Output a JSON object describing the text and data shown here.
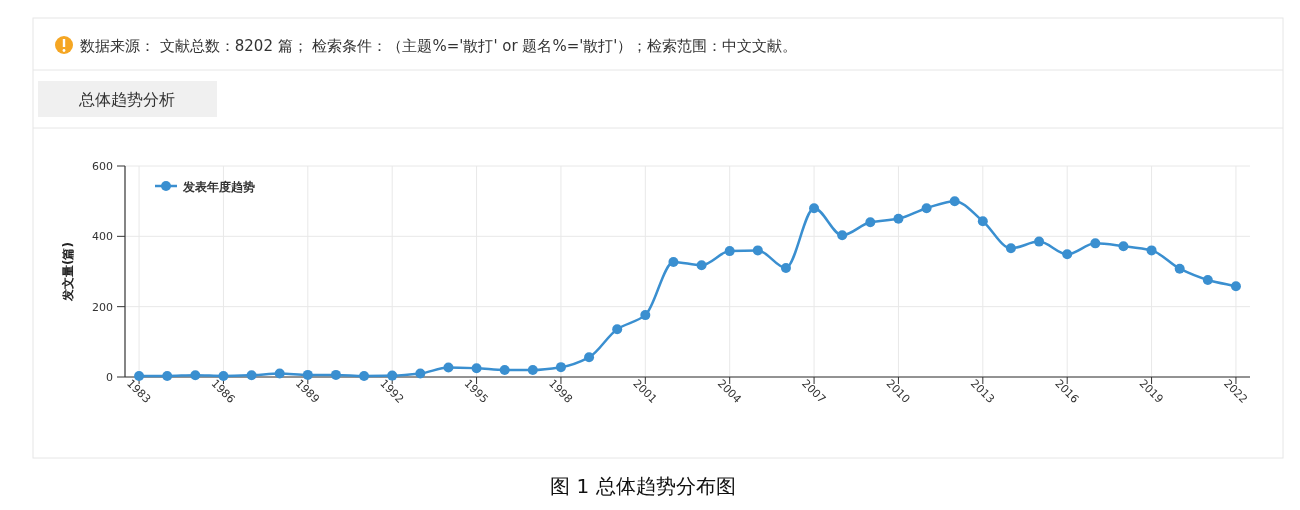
{
  "chart_data": {
    "type": "line",
    "title": "总体趋势分析",
    "annotations": [
      "数据来源：  文献总数：8202 篇；  检索条件：（主题%='散打' or 题名%='散打'）；检索范围：中文文献。",
      "图 1  总体趋势分布图"
    ],
    "ylabel": "发文量(篇)",
    "x": [
      1983,
      1984,
      1985,
      1986,
      1987,
      1988,
      1989,
      1990,
      1991,
      1992,
      1993,
      1994,
      1995,
      1996,
      1997,
      1998,
      1999,
      2000,
      2001,
      2002,
      2003,
      2004,
      2005,
      2006,
      2007,
      2008,
      2009,
      2010,
      2011,
      2012,
      2013,
      2014,
      2015,
      2016,
      2017,
      2018,
      2019,
      2020,
      2021,
      2022
    ],
    "series": [
      {
        "name": "发表年度趋势",
        "color": "#3a8fd0",
        "values": [
          3,
          3,
          5,
          3,
          5,
          10,
          6,
          6,
          3,
          4,
          10,
          27,
          25,
          20,
          20,
          28,
          56,
          136,
          176,
          327,
          318,
          358,
          360,
          310,
          480,
          403,
          440,
          450,
          480,
          500,
          443,
          366,
          385,
          349,
          380,
          372,
          360,
          308,
          276,
          258
        ]
      }
    ],
    "xlim": [
      1982.5,
      2022.5
    ],
    "xticks": [
      1983,
      1986,
      1989,
      1992,
      1995,
      1998,
      2001,
      2004,
      2007,
      2010,
      2013,
      2016,
      2019,
      2022
    ],
    "ylim": [
      0,
      600
    ],
    "yticks": [
      0,
      200,
      400,
      600
    ],
    "grid": true,
    "legend": "top left",
    "marker": "circle",
    "line_style": "solid"
  }
}
